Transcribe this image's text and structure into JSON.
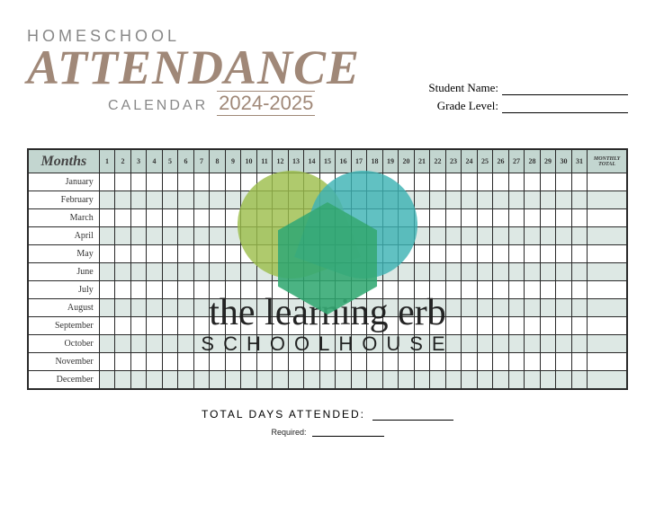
{
  "header": {
    "homeschool": "HOMESCHOOL",
    "attendance": "ATTENDANCE",
    "calendar": "CALENDAR",
    "year_range": "2024-2025"
  },
  "fields": {
    "student_name_label": "Student Name:",
    "grade_level_label": "Grade Level:"
  },
  "table": {
    "months_header": "Months",
    "monthly_total_header": "MONTHLY TOTAL",
    "day_numbers": [
      "1",
      "2",
      "3",
      "4",
      "5",
      "6",
      "7",
      "8",
      "9",
      "10",
      "11",
      "12",
      "13",
      "14",
      "15",
      "16",
      "17",
      "18",
      "19",
      "20",
      "21",
      "22",
      "23",
      "24",
      "25",
      "26",
      "27",
      "28",
      "29",
      "30",
      "31"
    ],
    "months": [
      "January",
      "February",
      "March",
      "April",
      "May",
      "June",
      "July",
      "August",
      "September",
      "October",
      "November",
      "December"
    ],
    "header_bg": "#c3d6d0",
    "alt_row_bg": "#dde8e4",
    "border_color": "#2a2a2a"
  },
  "footer": {
    "total_days_label": "TOTAL DAYS ATTENDED:",
    "required_label": "Required:"
  },
  "watermark": {
    "brand_script": "the learning erb",
    "brand_sub": "SCHOOLHOUSE",
    "lobe_left_color": "#9bbd4a",
    "lobe_right_color": "#3bb1b3",
    "hex_color": "#2ea66f"
  },
  "colors": {
    "accent_brown": "#a08878",
    "gray_text": "#888888",
    "page_bg": "#ffffff"
  }
}
